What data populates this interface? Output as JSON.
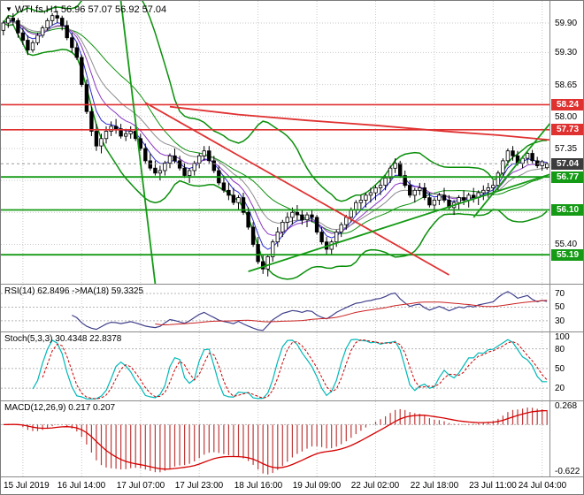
{
  "header": {
    "dropdown_icon": "▼",
    "symbol_line": "WTI.fs,H1 56.96 57.07 56.92 57.04"
  },
  "panels": {
    "rsi": {
      "label": "RSI(14) 62.8496  ->MA(18) 59.3325",
      "axis_labels": [
        70,
        50,
        30
      ],
      "levels": [
        70,
        50,
        30
      ],
      "range": [
        13,
        83
      ]
    },
    "stoch": {
      "label": "Stoch(5,3,3) 30.4348 22.8378",
      "axis_labels": [
        100,
        80,
        50,
        20
      ],
      "levels": [
        80,
        50,
        20
      ],
      "range": [
        0,
        105
      ]
    },
    "macd": {
      "label": "MACD(12,26,9) 0.217 0.207",
      "axis_labels": [
        "0.268",
        "-0.622"
      ],
      "axis_values": [
        0.268,
        -0.622
      ],
      "range": [
        -0.7,
        0.31
      ]
    }
  },
  "price_axis": {
    "range": [
      54.6,
      60.35
    ],
    "labels": [
      59.9,
      59.3,
      58.65,
      58.0,
      57.35,
      56.7,
      56.05,
      55.4
    ],
    "tags": [
      {
        "price": 58.24,
        "color": "#e03131",
        "kind": "resistance"
      },
      {
        "price": 57.73,
        "color": "#e03131",
        "kind": "resistance"
      },
      {
        "price": 57.04,
        "color": "#3c3c3c",
        "kind": "current"
      },
      {
        "price": 56.77,
        "color": "#149a14",
        "kind": "support"
      },
      {
        "price": 56.1,
        "color": "#149a14",
        "kind": "support"
      },
      {
        "price": 55.19,
        "color": "#149a14",
        "kind": "support"
      }
    ]
  },
  "time_axis": {
    "labels": [
      "15 Jul 2019",
      "16 Jul 14:00",
      "17 Jul 07:00",
      "17 Jul 23:00",
      "18 Jul 16:00",
      "19 Jul 09:00",
      "22 Jul 02:00",
      "22 Jul 18:00",
      "23 Jul 11:00",
      "24 Jul 04:00"
    ],
    "tick_indices": [
      4,
      16,
      28,
      40,
      52,
      64,
      76,
      88,
      100,
      110
    ]
  },
  "chart_data": {
    "type": "candlestick",
    "title": "WTI.fs,H1",
    "symbol": "WTI.fs",
    "timeframe": "H1",
    "last_ohlc": {
      "open": 56.96,
      "high": 57.07,
      "low": 56.92,
      "close": 57.04
    },
    "current_price": 57.04,
    "resistance_levels": [
      58.24,
      57.73
    ],
    "support_levels": [
      56.77,
      56.1,
      55.19
    ],
    "ylim": [
      54.6,
      60.35
    ],
    "colors": {
      "band": "#0a8f0a",
      "bull": "#ffffff",
      "bear": "#000000",
      "wick": "#000000",
      "ma_fast": "#2b2bd0",
      "ma_mid": "#8a35c4",
      "ma_slow": "#8c8c8c",
      "resistance": "#e03131",
      "support": "#149a14",
      "rsi": "#40408c",
      "rsi_ma": "#cc2222",
      "stoch_k": "#00b8b8",
      "stoch_d": "#cc0000",
      "macd_hist": "#c03a3a",
      "macd_signal": "#d40000"
    },
    "ohlc": [
      [
        59.75,
        59.95,
        59.65,
        59.9
      ],
      [
        59.9,
        60.05,
        59.8,
        60.0
      ],
      [
        60.0,
        60.1,
        59.85,
        59.95
      ],
      [
        59.95,
        60.0,
        59.6,
        59.7
      ],
      [
        59.7,
        59.8,
        59.45,
        59.55
      ],
      [
        59.55,
        59.65,
        59.25,
        59.35
      ],
      [
        59.35,
        59.55,
        59.3,
        59.5
      ],
      [
        59.5,
        59.7,
        59.45,
        59.65
      ],
      [
        59.65,
        59.85,
        59.6,
        59.8
      ],
      [
        59.8,
        60.0,
        59.75,
        59.95
      ],
      [
        59.95,
        60.1,
        59.85,
        60.05
      ],
      [
        60.05,
        60.15,
        59.9,
        60.0
      ],
      [
        60.0,
        60.05,
        59.75,
        59.85
      ],
      [
        59.85,
        59.95,
        59.55,
        59.6
      ],
      [
        59.6,
        59.7,
        59.3,
        59.4
      ],
      [
        59.4,
        59.5,
        59.15,
        59.2
      ],
      [
        59.2,
        59.25,
        58.6,
        58.65
      ],
      [
        58.65,
        58.75,
        58.05,
        58.1
      ],
      [
        58.1,
        58.2,
        57.6,
        57.7
      ],
      [
        57.7,
        57.85,
        57.3,
        57.4
      ],
      [
        57.4,
        57.65,
        57.25,
        57.55
      ],
      [
        57.55,
        57.8,
        57.45,
        57.7
      ],
      [
        57.7,
        57.9,
        57.6,
        57.8
      ],
      [
        57.8,
        57.95,
        57.65,
        57.75
      ],
      [
        57.75,
        57.85,
        57.55,
        57.6
      ],
      [
        57.6,
        57.75,
        57.5,
        57.65
      ],
      [
        57.65,
        57.8,
        57.55,
        57.7
      ],
      [
        57.7,
        57.85,
        57.5,
        57.55
      ],
      [
        57.55,
        57.65,
        57.3,
        57.35
      ],
      [
        57.35,
        57.45,
        57.05,
        57.1
      ],
      [
        57.1,
        57.25,
        56.9,
        56.95
      ],
      [
        56.95,
        57.1,
        56.8,
        56.85
      ],
      [
        56.85,
        57.0,
        56.7,
        56.9
      ],
      [
        56.9,
        57.1,
        56.8,
        57.05
      ],
      [
        57.05,
        57.25,
        56.95,
        57.2
      ],
      [
        57.2,
        57.35,
        57.05,
        57.1
      ],
      [
        57.1,
        57.2,
        56.9,
        56.95
      ],
      [
        56.95,
        57.05,
        56.75,
        56.8
      ],
      [
        56.8,
        56.95,
        56.65,
        56.9
      ],
      [
        56.9,
        57.1,
        56.8,
        57.05
      ],
      [
        57.05,
        57.25,
        56.95,
        57.2
      ],
      [
        57.2,
        57.4,
        57.1,
        57.3
      ],
      [
        57.3,
        57.4,
        57.05,
        57.1
      ],
      [
        57.1,
        57.2,
        56.85,
        56.9
      ],
      [
        56.9,
        57.0,
        56.6,
        56.65
      ],
      [
        56.65,
        56.8,
        56.45,
        56.5
      ],
      [
        56.5,
        56.65,
        56.3,
        56.4
      ],
      [
        56.4,
        56.55,
        56.2,
        56.25
      ],
      [
        56.25,
        56.4,
        56.1,
        56.35
      ],
      [
        56.35,
        56.45,
        56.0,
        56.05
      ],
      [
        56.05,
        56.15,
        55.7,
        55.75
      ],
      [
        55.75,
        55.85,
        55.35,
        55.4
      ],
      [
        55.4,
        55.55,
        55.0,
        55.05
      ],
      [
        55.05,
        55.2,
        54.8,
        54.9
      ],
      [
        54.9,
        55.2,
        54.75,
        55.15
      ],
      [
        55.15,
        55.5,
        55.05,
        55.45
      ],
      [
        55.45,
        55.75,
        55.35,
        55.65
      ],
      [
        55.65,
        55.9,
        55.55,
        55.85
      ],
      [
        55.85,
        56.05,
        55.7,
        55.95
      ],
      [
        55.95,
        56.15,
        55.8,
        56.05
      ],
      [
        56.05,
        56.2,
        55.9,
        56.0
      ],
      [
        56.0,
        56.1,
        55.8,
        55.9
      ],
      [
        55.9,
        56.05,
        55.75,
        56.0
      ],
      [
        56.0,
        56.1,
        55.85,
        55.95
      ],
      [
        55.95,
        56.0,
        55.6,
        55.65
      ],
      [
        55.65,
        55.75,
        55.4,
        55.45
      ],
      [
        55.45,
        55.55,
        55.2,
        55.3
      ],
      [
        55.3,
        55.5,
        55.2,
        55.45
      ],
      [
        55.45,
        55.7,
        55.35,
        55.65
      ],
      [
        55.65,
        55.85,
        55.55,
        55.8
      ],
      [
        55.8,
        56.0,
        55.7,
        55.95
      ],
      [
        55.95,
        56.15,
        55.85,
        56.1
      ],
      [
        56.1,
        56.3,
        56.0,
        56.25
      ],
      [
        56.25,
        56.4,
        56.1,
        56.3
      ],
      [
        56.3,
        56.45,
        56.15,
        56.4
      ],
      [
        56.4,
        56.55,
        56.25,
        56.45
      ],
      [
        56.45,
        56.6,
        56.3,
        56.55
      ],
      [
        56.55,
        56.7,
        56.4,
        56.6
      ],
      [
        56.6,
        56.8,
        56.5,
        56.75
      ],
      [
        56.75,
        57.0,
        56.65,
        56.95
      ],
      [
        56.95,
        57.15,
        56.85,
        57.05
      ],
      [
        57.05,
        57.1,
        56.75,
        56.8
      ],
      [
        56.8,
        56.9,
        56.55,
        56.6
      ],
      [
        56.6,
        56.7,
        56.35,
        56.4
      ],
      [
        56.4,
        56.55,
        56.25,
        56.5
      ],
      [
        56.5,
        56.65,
        56.4,
        56.55
      ],
      [
        56.55,
        56.65,
        56.3,
        56.35
      ],
      [
        56.35,
        56.45,
        56.15,
        56.2
      ],
      [
        56.2,
        56.35,
        56.05,
        56.3
      ],
      [
        56.3,
        56.45,
        56.2,
        56.4
      ],
      [
        56.4,
        56.55,
        56.25,
        56.3
      ],
      [
        56.3,
        56.4,
        56.1,
        56.15
      ],
      [
        56.15,
        56.3,
        56.0,
        56.25
      ],
      [
        56.25,
        56.4,
        56.1,
        56.35
      ],
      [
        56.35,
        56.5,
        56.2,
        56.3
      ],
      [
        56.3,
        56.45,
        56.15,
        56.4
      ],
      [
        56.4,
        56.55,
        56.25,
        56.35
      ],
      [
        56.35,
        56.5,
        56.2,
        56.45
      ],
      [
        56.45,
        56.6,
        56.3,
        56.5
      ],
      [
        56.5,
        56.65,
        56.35,
        56.55
      ],
      [
        56.55,
        56.7,
        56.4,
        56.6
      ],
      [
        56.6,
        56.9,
        56.5,
        56.85
      ],
      [
        56.85,
        57.15,
        56.75,
        57.1
      ],
      [
        57.1,
        57.35,
        57.0,
        57.3
      ],
      [
        57.3,
        57.4,
        57.1,
        57.2
      ],
      [
        57.2,
        57.3,
        57.0,
        57.05
      ],
      [
        57.05,
        57.2,
        56.95,
        57.15
      ],
      [
        57.15,
        57.3,
        57.05,
        57.25
      ],
      [
        57.25,
        57.32,
        57.05,
        57.1
      ],
      [
        57.1,
        57.18,
        56.95,
        57.0
      ],
      [
        57.0,
        57.12,
        56.9,
        57.08
      ],
      [
        56.96,
        57.07,
        56.92,
        57.04
      ]
    ],
    "overlays": [
      {
        "name": "resistance-line-1",
        "type": "hline",
        "price": 58.24,
        "color": "#e03131",
        "width": 1.6
      },
      {
        "name": "resistance-line-2",
        "type": "hline",
        "price": 57.73,
        "color": "#e03131",
        "width": 1.6
      },
      {
        "name": "support-line-1",
        "type": "hline",
        "price": 56.77,
        "color": "#149a14",
        "width": 1.8
      },
      {
        "name": "support-line-2",
        "type": "hline",
        "price": 56.1,
        "color": "#149a14",
        "width": 1.8
      },
      {
        "name": "support-line-3",
        "type": "hline",
        "price": 55.19,
        "color": "#149a14",
        "width": 1.8
      },
      {
        "name": "current-price-line",
        "type": "hline",
        "price": 57.04,
        "color": "#9a9a9a",
        "width": 1,
        "dash": "3,3"
      },
      {
        "name": "descending-trendline",
        "type": "segment",
        "from": [
          29,
          58.28
        ],
        "to": [
          91,
          54.78
        ],
        "color": "#e03131",
        "width": 1.8
      },
      {
        "name": "steep-channel-line",
        "type": "segment",
        "from": [
          24,
          60.35
        ],
        "to": [
          31,
          54.6
        ],
        "color": "#149a14",
        "width": 1.8
      },
      {
        "name": "ascending-support-trendline",
        "type": "segment",
        "from": [
          50,
          54.85
        ],
        "to": [
          114,
          56.9
        ],
        "color": "#149a14",
        "width": 1.8
      },
      {
        "name": "ascending-trendline-right",
        "type": "segment",
        "from": [
          96,
          55.95
        ],
        "to": [
          114,
          58.15
        ],
        "color": "#149a14",
        "width": 1.8
      },
      {
        "name": "long-term-ma",
        "type": "polyline",
        "points": [
          [
            34,
            58.2
          ],
          [
            48,
            58.04
          ],
          [
            62,
            57.92
          ],
          [
            76,
            57.82
          ],
          [
            90,
            57.7
          ],
          [
            101,
            57.62
          ],
          [
            112,
            57.52
          ]
        ],
        "color": "#e03131",
        "width": 1.8
      }
    ],
    "indicators": {
      "bollinger": {
        "period": 20,
        "deviation": 2
      },
      "rsi": {
        "period": 14,
        "ma_period": 18,
        "value": 62.8496,
        "ma_value": 59.3325
      },
      "stochastic": {
        "params": [
          5,
          3,
          3
        ],
        "k_value": 30.4348,
        "d_value": 22.8378
      },
      "macd": {
        "params": [
          12,
          26,
          9
        ],
        "macd_value": 0.217,
        "signal_value": 0.207,
        "scale_max": 0.268,
        "scale_min": -0.622
      }
    }
  }
}
